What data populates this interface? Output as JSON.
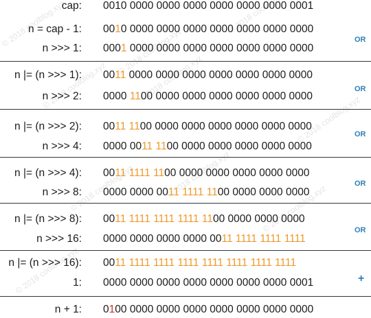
{
  "watermark": "© 2018 coolblog.xyz",
  "colors": {
    "highlight": "#f0982a",
    "red_bit": "#d0312d",
    "operator": "#2f7fb6",
    "text": "#1a1a1a"
  },
  "rows": [
    {
      "label": "cap:",
      "bits": "0010 0000 0000 0000 0000 0000 0000 0001",
      "hl": []
    },
    {
      "label": "n = cap - 1:",
      "bits": "0010 0000 0000 0000 0000 0000 0000 0000",
      "hl": [
        2
      ]
    },
    {
      "label": "n >>> 1:",
      "bits": "0001 0000 0000 0000 0000 0000 0000 0000",
      "hl": [
        3
      ]
    },
    {
      "label": "n |= (n >>> 1):",
      "bits": "0011 0000 0000 0000 0000 0000 0000 0000",
      "hl": [
        2,
        3
      ]
    },
    {
      "label": "n >>> 2:",
      "bits": "0000 1100 0000 0000 0000 0000 0000 0000",
      "hl": [
        4,
        5
      ]
    },
    {
      "label": "n |= (n >>> 2):",
      "bits": "0011 1100 0000 0000 0000 0000 0000 0000",
      "hl": [
        2,
        3,
        4,
        5
      ]
    },
    {
      "label": "n >>> 4:",
      "bits": "0000 0011 1100 0000 0000 0000 0000 0000",
      "hl": [
        6,
        7,
        8,
        9
      ]
    },
    {
      "label": "n |= (n >>> 4):",
      "bits": "0011 1111 1100 0000 0000 0000 0000 0000",
      "hl": [
        2,
        3,
        4,
        5,
        6,
        7,
        8,
        9
      ]
    },
    {
      "label": "n >>> 8:",
      "bits": "0000 0000 0011 1111 1100 0000 0000 0000",
      "hl": [
        10,
        11,
        12,
        13,
        14,
        15,
        16,
        17
      ]
    },
    {
      "label": "n |= (n >>> 8):",
      "bits": "0011 1111 1111 1111 1100 0000 0000 0000",
      "hl": [
        2,
        3,
        4,
        5,
        6,
        7,
        8,
        9,
        10,
        11,
        12,
        13,
        14,
        15,
        16,
        17
      ]
    },
    {
      "label": "n >>> 16:",
      "bits": "0000 0000 0000 0000 0011 1111 1111 1111",
      "hl": [
        18,
        19,
        20,
        21,
        22,
        23,
        24,
        25,
        26,
        27,
        28,
        29,
        30,
        31
      ]
    },
    {
      "label": "n |= (n >>> 16):",
      "bits": "0011 1111 1111 1111 1111 1111 1111 1111",
      "hl": [
        2,
        3,
        4,
        5,
        6,
        7,
        8,
        9,
        10,
        11,
        12,
        13,
        14,
        15,
        16,
        17,
        18,
        19,
        20,
        21,
        22,
        23,
        24,
        25,
        26,
        27,
        28,
        29,
        30,
        31
      ]
    },
    {
      "label": "1:",
      "bits": "0000 0000 0000 0000 0000 0000 0000 0001",
      "hl": []
    },
    {
      "label": "n + 1:",
      "bits": "0100 0000 0000 0000 0000 0000 0000 0000",
      "hl": [],
      "red": [
        1
      ]
    }
  ],
  "operators": [
    "OR",
    "OR",
    "OR",
    "OR",
    "OR",
    "+"
  ]
}
